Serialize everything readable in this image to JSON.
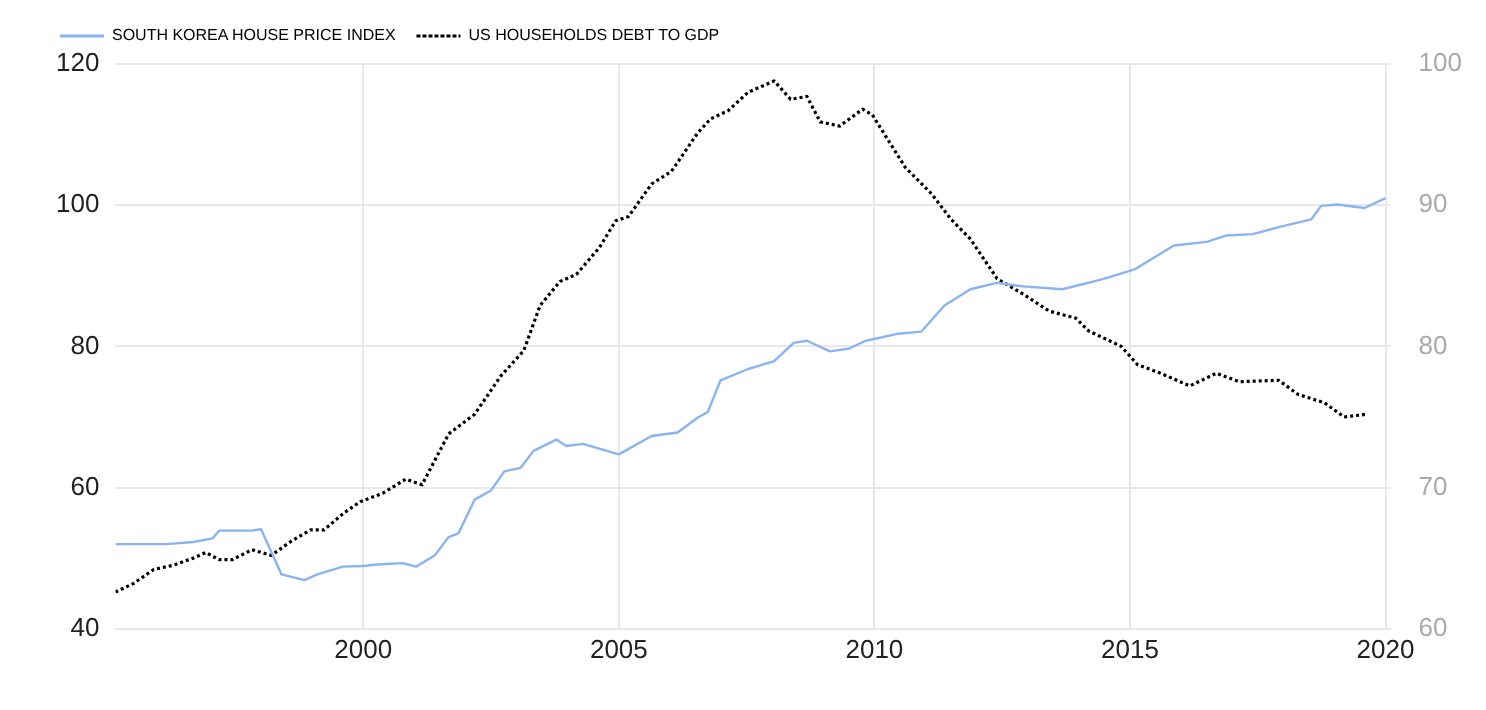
{
  "chart_data": {
    "type": "line",
    "xlim": [
      1995.15,
      2020.1
    ],
    "xticks": [
      2000,
      2005,
      2010,
      2015,
      2020
    ],
    "ylim": [
      40,
      120
    ],
    "yticks": [
      40,
      60,
      80,
      100,
      120
    ],
    "y2lim": [
      60,
      100
    ],
    "y2ticks": [
      60,
      70,
      80,
      90,
      100
    ],
    "grid": true,
    "legend": "top left",
    "marker": "none",
    "series": [
      {
        "name": "SOUTH KOREA HOUSE PRICE INDEX",
        "color": "#8ab4f0",
        "line_style": "solid",
        "x": [
          1995.15,
          1996.15,
          1996.67,
          1997.05,
          1997.18,
          1997.82,
          1998.0,
          1998.2,
          1998.4,
          1998.85,
          1999.1,
          1999.6,
          2000,
          2000.26,
          2000.77,
          2001.03,
          2001.4,
          2001.67,
          2001.86,
          2002.18,
          2002.5,
          2002.76,
          2003.08,
          2003.33,
          2003.78,
          2003.97,
          2004.3,
          2005,
          2005.64,
          2006.15,
          2006.54,
          2006.74,
          2006.99,
          2007.53,
          2008.04,
          2008.42,
          2008.68,
          2009.13,
          2009.51,
          2009.83,
          2010.47,
          2010.92,
          2011.37,
          2011.88,
          2012.4,
          2012.91,
          2013.68,
          2014.45,
          2015.09,
          2015.86,
          2016.5,
          2016.88,
          2017.4,
          2017.91,
          2018.55,
          2018.74,
          2019.06,
          2019.59,
          2020.0
        ],
        "values": [
          52.0,
          52.0,
          52.3,
          52.8,
          53.9,
          53.9,
          54.1,
          50.9,
          47.7,
          46.9,
          47.7,
          48.8,
          48.9,
          49.1,
          49.3,
          48.8,
          50.4,
          53.0,
          53.5,
          58.3,
          59.6,
          62.3,
          62.8,
          65.2,
          66.8,
          65.9,
          66.2,
          64.7,
          67.3,
          67.8,
          69.9,
          70.7,
          75.2,
          76.8,
          77.9,
          80.5,
          80.8,
          79.3,
          79.7,
          80.8,
          81.8,
          82.1,
          85.8,
          88.1,
          89.0,
          88.5,
          88.1,
          89.5,
          90.9,
          94.3,
          94.8,
          95.7,
          95.9,
          96.9,
          98.0,
          99.9,
          100.1,
          99.6,
          101.0
        ]
      },
      {
        "name": "US HOUSEHOLDS DEBT TO GDP",
        "color": "#000000",
        "line_style": "dotted",
        "axis": "y2",
        "x": [
          1995.15,
          1995.5,
          1995.9,
          1996.28,
          1996.67,
          1996.92,
          1997.18,
          1997.44,
          1997.82,
          1998.2,
          1998.59,
          1998.97,
          1999.23,
          1999.62,
          1999.94,
          2000.38,
          2000.83,
          2001.15,
          2001.67,
          2002.18,
          2002.69,
          2003.14,
          2003.46,
          2003.85,
          2004.17,
          2004.62,
          2004.94,
          2005.19,
          2005.64,
          2006.03,
          2006.54,
          2006.79,
          2007.14,
          2007.53,
          2008.04,
          2008.36,
          2008.68,
          2008.94,
          2009.32,
          2009.77,
          2009.96,
          2010.6,
          2011.12,
          2011.5,
          2011.88,
          2012.4,
          2012.91,
          2013.42,
          2013.94,
          2014.19,
          2014.83,
          2015.15,
          2015.6,
          2016.17,
          2016.69,
          2017.14,
          2017.91,
          2018.29,
          2018.81,
          2019.19,
          2019.64
        ],
        "values": [
          62.6,
          63.2,
          64.2,
          64.5,
          65.0,
          65.4,
          64.9,
          64.9,
          65.6,
          65.2,
          66.2,
          67.0,
          67.0,
          68.2,
          69.0,
          69.6,
          70.6,
          70.2,
          73.8,
          75.2,
          77.9,
          79.7,
          82.9,
          84.6,
          85.1,
          87.0,
          88.9,
          89.2,
          91.5,
          92.4,
          95.1,
          96.1,
          96.7,
          98.0,
          98.8,
          97.5,
          97.7,
          95.9,
          95.6,
          96.8,
          96.4,
          92.7,
          90.8,
          89.0,
          87.6,
          84.8,
          83.7,
          82.5,
          82.0,
          81.1,
          80.0,
          78.7,
          78.1,
          77.2,
          78.1,
          77.5,
          77.6,
          76.6,
          76.0,
          75.0,
          75.2
        ]
      }
    ]
  }
}
